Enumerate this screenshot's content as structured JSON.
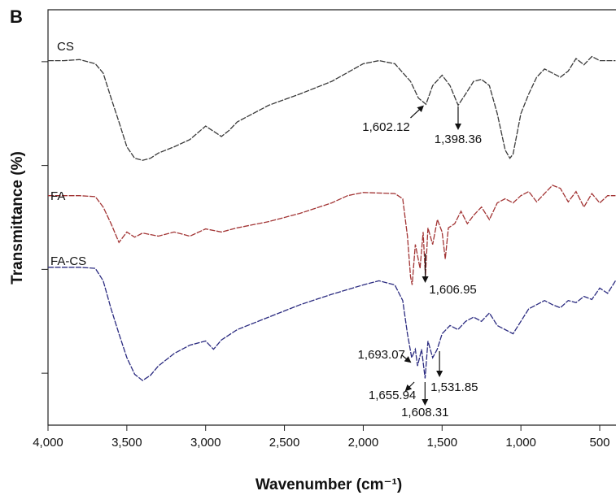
{
  "chart_data": {
    "type": "line",
    "panel_label": "B",
    "x_label": "Wavenumber (cm⁻¹)",
    "y_label": "Transmittance (%)",
    "xlim": [
      4000,
      400
    ],
    "ylim": [
      0.5,
      4.5
    ],
    "xticks": [
      {
        "value": 4000,
        "label": "4,000"
      },
      {
        "value": 3500,
        "label": "3,500"
      },
      {
        "value": 3000,
        "label": "3,000"
      },
      {
        "value": 2500,
        "label": "2,500"
      },
      {
        "value": 2000,
        "label": "2,000"
      },
      {
        "value": 1500,
        "label": "1,500"
      },
      {
        "value": 1000,
        "label": "1,000"
      },
      500
    ],
    "yticks": [
      1,
      2,
      3,
      4
    ],
    "series": [
      {
        "name": "CS",
        "color": "#3a3a3a",
        "x": [
          4000,
          3900,
          3800,
          3700,
          3650,
          3600,
          3550,
          3500,
          3450,
          3400,
          3350,
          3300,
          3200,
          3100,
          3000,
          2950,
          2900,
          2850,
          2800,
          2600,
          2400,
          2200,
          2000,
          1900,
          1800,
          1700,
          1650,
          1602,
          1560,
          1500,
          1450,
          1398,
          1350,
          1300,
          1250,
          1200,
          1150,
          1100,
          1070,
          1050,
          1000,
          950,
          900,
          850,
          800,
          750,
          700,
          650,
          600,
          550,
          500,
          400
        ],
        "values": [
          4.01,
          4.01,
          4.02,
          3.98,
          3.89,
          3.65,
          3.42,
          3.18,
          3.07,
          3.05,
          3.07,
          3.12,
          3.18,
          3.25,
          3.38,
          3.33,
          3.28,
          3.34,
          3.42,
          3.58,
          3.69,
          3.81,
          3.98,
          4.01,
          3.98,
          3.81,
          3.65,
          3.59,
          3.77,
          3.87,
          3.77,
          3.58,
          3.69,
          3.81,
          3.83,
          3.77,
          3.5,
          3.15,
          3.07,
          3.11,
          3.5,
          3.69,
          3.85,
          3.93,
          3.89,
          3.85,
          3.91,
          4.03,
          3.97,
          4.05,
          4.01,
          4.01
        ],
        "annotations": [
          {
            "value": 1602.12,
            "label": "1,602.12"
          },
          {
            "value": 1398.36,
            "label": "1,398.36"
          }
        ]
      },
      {
        "name": "FA",
        "color": "#a23434",
        "x": [
          4000,
          3800,
          3700,
          3650,
          3600,
          3550,
          3500,
          3450,
          3400,
          3300,
          3200,
          3100,
          3000,
          2900,
          2800,
          2600,
          2400,
          2200,
          2100,
          2000,
          1800,
          1750,
          1720,
          1700,
          1690,
          1670,
          1640,
          1620,
          1606,
          1590,
          1560,
          1530,
          1500,
          1480,
          1460,
          1420,
          1380,
          1340,
          1300,
          1250,
          1200,
          1150,
          1100,
          1050,
          1000,
          950,
          900,
          850,
          800,
          750,
          700,
          650,
          600,
          550,
          500,
          450,
          400
        ],
        "values": [
          2.71,
          2.71,
          2.7,
          2.6,
          2.44,
          2.26,
          2.36,
          2.31,
          2.35,
          2.32,
          2.36,
          2.32,
          2.39,
          2.36,
          2.4,
          2.46,
          2.54,
          2.64,
          2.71,
          2.74,
          2.73,
          2.68,
          2.32,
          1.93,
          1.85,
          2.24,
          2.01,
          2.36,
          1.93,
          2.4,
          2.24,
          2.48,
          2.36,
          2.1,
          2.4,
          2.44,
          2.56,
          2.44,
          2.52,
          2.6,
          2.48,
          2.64,
          2.68,
          2.64,
          2.71,
          2.75,
          2.65,
          2.73,
          2.81,
          2.78,
          2.65,
          2.75,
          2.6,
          2.73,
          2.64,
          2.71,
          2.71
        ],
        "annotations": [
          {
            "value": 1606.95,
            "label": "1,606.95"
          }
        ]
      },
      {
        "name": "FA-CS",
        "color": "#2b2b80",
        "x": [
          4000,
          3800,
          3700,
          3650,
          3600,
          3550,
          3500,
          3450,
          3400,
          3350,
          3300,
          3200,
          3100,
          3000,
          2950,
          2900,
          2800,
          2600,
          2400,
          2200,
          2000,
          1900,
          1800,
          1750,
          1720,
          1693,
          1670,
          1656,
          1630,
          1608,
          1590,
          1560,
          1531,
          1500,
          1450,
          1400,
          1350,
          1300,
          1250,
          1200,
          1150,
          1100,
          1050,
          1000,
          950,
          900,
          850,
          800,
          750,
          700,
          650,
          600,
          550,
          500,
          450,
          400
        ],
        "values": [
          2.02,
          2.02,
          2.01,
          1.89,
          1.62,
          1.38,
          1.15,
          0.99,
          0.93,
          0.98,
          1.07,
          1.19,
          1.27,
          1.31,
          1.23,
          1.32,
          1.42,
          1.54,
          1.66,
          1.76,
          1.85,
          1.89,
          1.85,
          1.7,
          1.38,
          1.15,
          1.23,
          1.07,
          1.23,
          0.95,
          1.31,
          1.15,
          1.23,
          1.38,
          1.46,
          1.42,
          1.5,
          1.54,
          1.5,
          1.58,
          1.46,
          1.42,
          1.38,
          1.5,
          1.62,
          1.66,
          1.7,
          1.66,
          1.63,
          1.7,
          1.68,
          1.74,
          1.71,
          1.82,
          1.77,
          1.89
        ],
        "annotations": [
          {
            "value": 1693.07,
            "label": "1,693.07"
          },
          {
            "value": 1655.94,
            "label": "1,655.94"
          },
          {
            "value": 1608.31,
            "label": "1,608.31"
          },
          {
            "value": 1531.85,
            "label": "1,531.85"
          }
        ]
      }
    ]
  }
}
